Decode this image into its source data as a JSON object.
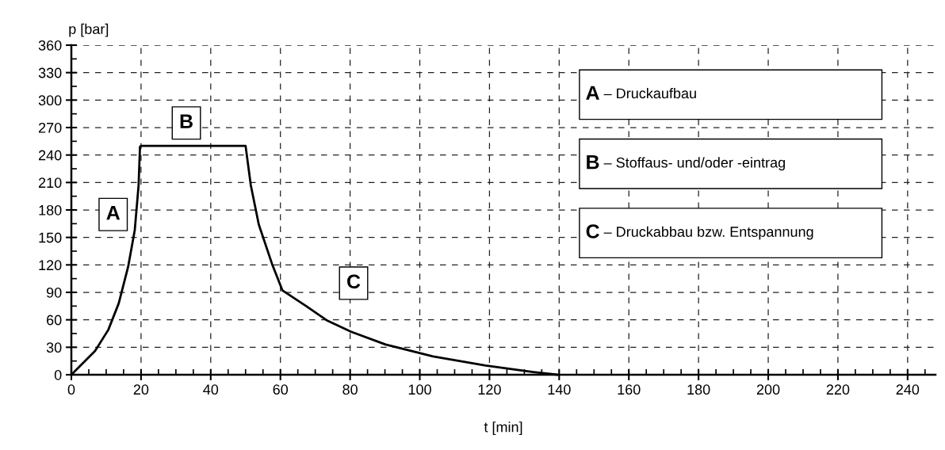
{
  "chart_data": {
    "type": "line",
    "xlabel": "t [min]",
    "ylabel": "p [bar]",
    "series": [
      {
        "color": "#000000",
        "x": [
          0,
          6.8,
          10.6,
          13.6,
          16.3,
          18.2,
          19.3,
          19.7,
          20,
          50,
          51.5,
          53.8,
          57.6,
          60.6,
          67.4,
          73.5,
          80.3,
          90.2,
          103.8,
          118.9,
          132.6,
          139.5
        ],
        "values": [
          0,
          26,
          49,
          78,
          118,
          158,
          207,
          249,
          250,
          250,
          207,
          164,
          121,
          92,
          75,
          59,
          47,
          33,
          20,
          10,
          3,
          0
        ]
      }
    ],
    "xlim": [
      0,
      248
    ],
    "ylim": [
      0,
      360
    ],
    "xticks": [
      0,
      20,
      40,
      60,
      80,
      100,
      120,
      140,
      160,
      180,
      200,
      220,
      240
    ],
    "yticks": [
      0,
      30,
      60,
      90,
      120,
      150,
      180,
      210,
      240,
      270,
      300,
      330,
      360
    ],
    "grid": true,
    "line_style": "solid",
    "marker": "none",
    "annotations": [
      {
        "text": "A",
        "x": 12,
        "y": 175
      },
      {
        "text": "B",
        "x": 33,
        "y": 275
      },
      {
        "text": "C",
        "x": 81,
        "y": 100
      },
      "A – Druckaufbau",
      "B – Stoffaus- und/oder -eintrag",
      "C – Druckabbau bzw. Entspannung"
    ]
  }
}
